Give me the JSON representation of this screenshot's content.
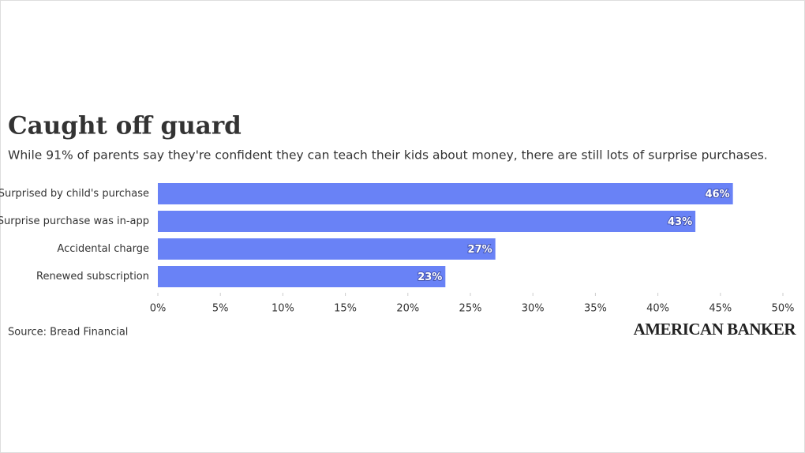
{
  "chart_data": {
    "type": "bar",
    "orientation": "horizontal",
    "title": "Caught off guard",
    "subtitle": "While 91% of parents say they're confident they can teach their kids about money, there are still lots of surprise purchases.",
    "categories": [
      "Surprised by child's purchase",
      "Surprise purchase was in-app",
      "Accidental charge",
      "Renewed subscription"
    ],
    "values": [
      46,
      43,
      27,
      23
    ],
    "value_labels": [
      "46%",
      "43%",
      "27%",
      "23%"
    ],
    "color": "#6982f6",
    "xlim": [
      0,
      50
    ],
    "xticks": [
      {
        "value": 0,
        "label": "0%"
      },
      {
        "value": 5,
        "label": "5%"
      },
      {
        "value": 10,
        "label": "10%"
      },
      {
        "value": 15,
        "label": "15%"
      },
      {
        "value": 20,
        "label": "20%"
      },
      {
        "value": 25,
        "label": "25%"
      },
      {
        "value": 30,
        "label": "30%"
      },
      {
        "value": 35,
        "label": "35%"
      },
      {
        "value": 40,
        "label": "40%"
      },
      {
        "value": 45,
        "label": "45%"
      },
      {
        "value": 50,
        "label": "50%"
      }
    ],
    "source": "Source: Bread Financial",
    "brand": "AMERICAN BANKER"
  }
}
